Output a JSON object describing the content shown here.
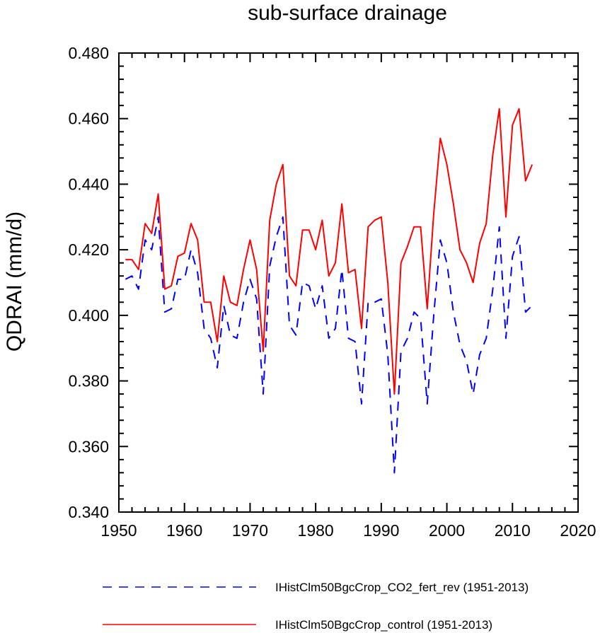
{
  "chart_data": {
    "type": "line",
    "title": "sub-surface drainage",
    "xlabel": "",
    "ylabel": "QDRAI  (mm/d)",
    "xlim": [
      1950,
      2020
    ],
    "ylim": [
      0.34,
      0.48
    ],
    "xticks": [
      1950,
      1960,
      1970,
      1980,
      1990,
      2000,
      2010,
      2020
    ],
    "yticks": [
      0.34,
      0.36,
      0.38,
      0.4,
      0.42,
      0.44,
      0.46,
      0.48
    ],
    "ytick_labels": [
      "0.340",
      "0.360",
      "0.380",
      "0.400",
      "0.420",
      "0.440",
      "0.460",
      "0.480"
    ],
    "xtick_labels": [
      "1950",
      "1960",
      "1970",
      "1980",
      "1990",
      "2000",
      "2010",
      "2020"
    ],
    "grid": false,
    "legend_position": "bottom",
    "x": [
      1951,
      1952,
      1953,
      1954,
      1955,
      1956,
      1957,
      1958,
      1959,
      1960,
      1961,
      1962,
      1963,
      1964,
      1965,
      1966,
      1967,
      1968,
      1969,
      1970,
      1971,
      1972,
      1973,
      1974,
      1975,
      1976,
      1977,
      1978,
      1979,
      1980,
      1981,
      1982,
      1983,
      1984,
      1985,
      1986,
      1987,
      1988,
      1989,
      1990,
      1991,
      1992,
      1993,
      1994,
      1995,
      1996,
      1997,
      1998,
      1999,
      2000,
      2001,
      2002,
      2003,
      2004,
      2005,
      2006,
      2007,
      2008,
      2009,
      2010,
      2011,
      2012,
      2013
    ],
    "series": [
      {
        "name": "IHistClm50BgcCrop_CO2_fert_rev (1951-2013)",
        "color": "#0000ff",
        "style": "dashed",
        "values": [
          0.411,
          0.412,
          0.408,
          0.423,
          0.42,
          0.43,
          0.401,
          0.402,
          0.411,
          0.411,
          0.42,
          0.413,
          0.396,
          0.393,
          0.384,
          0.403,
          0.394,
          0.393,
          0.404,
          0.411,
          0.405,
          0.376,
          0.415,
          0.424,
          0.43,
          0.397,
          0.394,
          0.41,
          0.409,
          0.402,
          0.409,
          0.393,
          0.396,
          0.414,
          0.393,
          0.392,
          0.373,
          0.404,
          0.404,
          0.405,
          0.388,
          0.352,
          0.389,
          0.393,
          0.401,
          0.399,
          0.373,
          0.4,
          0.423,
          0.416,
          0.401,
          0.391,
          0.386,
          0.376,
          0.388,
          0.393,
          0.408,
          0.427,
          0.393,
          0.418,
          0.424,
          0.401,
          0.403
        ]
      },
      {
        "name": "IHistClm50BgcCrop_control (1951-2013)",
        "color": "#ff0000",
        "style": "solid",
        "values": [
          0.417,
          0.417,
          0.414,
          0.428,
          0.425,
          0.437,
          0.408,
          0.409,
          0.418,
          0.419,
          0.428,
          0.423,
          0.404,
          0.404,
          0.392,
          0.412,
          0.404,
          0.403,
          0.414,
          0.423,
          0.414,
          0.389,
          0.429,
          0.44,
          0.446,
          0.412,
          0.409,
          0.426,
          0.426,
          0.42,
          0.429,
          0.412,
          0.416,
          0.434,
          0.413,
          0.414,
          0.396,
          0.427,
          0.429,
          0.43,
          0.41,
          0.376,
          0.416,
          0.421,
          0.427,
          0.427,
          0.402,
          0.431,
          0.454,
          0.446,
          0.434,
          0.42,
          0.416,
          0.41,
          0.422,
          0.428,
          0.449,
          0.463,
          0.43,
          0.458,
          0.463,
          0.441,
          0.446
        ]
      }
    ]
  }
}
